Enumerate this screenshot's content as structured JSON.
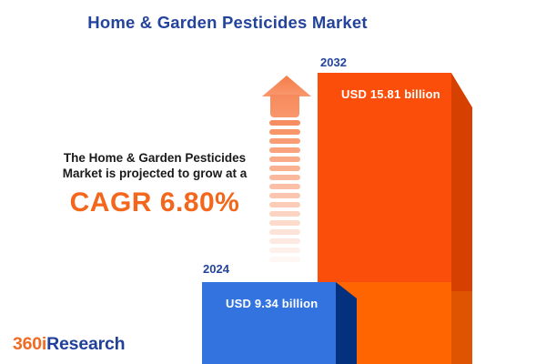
{
  "title": "Home & Garden Pesticides Market",
  "headline": {
    "line1": "The Home & Garden Pesticides",
    "line2": "Market is projected to grow at a",
    "cagr_label": "CAGR 6.80%"
  },
  "bars": [
    {
      "year": "2024",
      "value_label": "USD 9.34 billion"
    },
    {
      "year": "2032",
      "value_label": "USD 15.81 billion"
    }
  ],
  "logo": {
    "part1": "360i",
    "part2": "Research"
  },
  "chart_data": {
    "type": "bar",
    "title": "Home & Garden Pesticides Market",
    "categories": [
      "2024",
      "2032"
    ],
    "values": [
      9.34,
      15.81
    ],
    "unit": "USD billion",
    "value_labels": [
      "USD 9.34 billion",
      "USD 15.81 billion"
    ],
    "cagr_percent": 6.8,
    "annotation": "The Home & Garden Pesticides Market is projected to grow at a CAGR 6.80%",
    "orientation": "vertical",
    "grid": false,
    "legend": false
  },
  "colors": {
    "title_blue": "#24449C",
    "text_black": "#1A1A1A",
    "cagr_orange": "#F4661B",
    "bar2024_face": "#3273E0",
    "bar2024_side": "#04307E",
    "bar2032_face_top": "#FB4E0A",
    "bar2032_face_base": "#FF6500",
    "bar2032_side_top": "#D64000",
    "bar2032_side_base": "#DE5400",
    "arrow_stripe": "#F78E61",
    "logo_orange": "#F26B24",
    "logo_blue": "#21409A",
    "value_text": "#FFFFFF"
  }
}
